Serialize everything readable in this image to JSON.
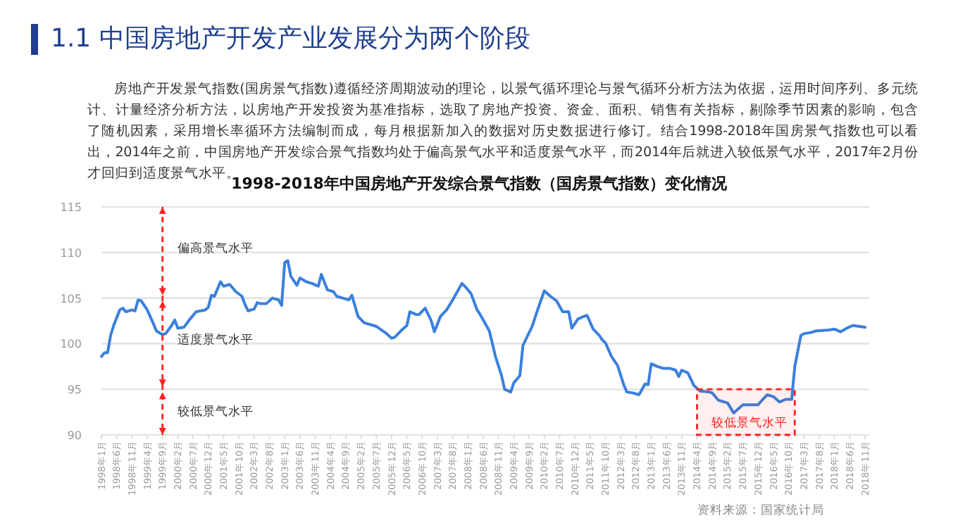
{
  "chart_data": {
    "type": "line",
    "title": "1998-2018年中国房地产开发综合景气指数（国房景气指数）变化情况",
    "annotations": [
      "1.1  中国房地产开发产业发展分为两个阶段",
      "房地产开发景气指数(国房景气指数)遵循经济周期波动的理论，以景气循环理论与景气循环分析方法为依据，运用时间序列、多元统计、计量经济分析方法，以房地产开发投资为基准指标，选取了房地产投资、资金、面积、销售有关指标，剔除季节因素的影响，包含了随机因素，采用增长率循环方法编制而成，每月根据新加入的数据对历史数据进行修订。结合1998-2018年国房景气指数也可以看出，2014年之前，中国房地产开发综合景气指数均处于偏高景气水平和适度景气水平，而2014年后就进入较低景气水平，2017年2月份才回归到适度景气水平。",
      "资料来源：国家统计局",
      "偏高景气水平",
      "适度景气水平",
      "较低景气水平",
      "较低景气水平"
    ],
    "x": [
      "1998-01",
      "1998-02",
      "1998-03",
      "1998-04",
      "1998-05",
      "1998-07",
      "1998-08",
      "1998-09",
      "1998-11",
      "1998-12",
      "1999-01",
      "1999-02",
      "1999-04",
      "1999-06",
      "1999-07",
      "1999-09",
      "1999-10",
      "1999-12",
      "2000-01",
      "2000-02",
      "2000-04",
      "2000-06",
      "2000-08",
      "2000-11",
      "2000-12",
      "2001-01",
      "2001-02",
      "2001-04",
      "2001-05",
      "2001-07",
      "2001-09",
      "2001-11",
      "2001-12",
      "2002-01",
      "2002-03",
      "2002-04",
      "2002-05",
      "2002-07",
      "2002-09",
      "2002-11",
      "2002-12",
      "2003-01",
      "2003-02",
      "2003-03",
      "2003-05",
      "2003-06",
      "2003-08",
      "2003-10",
      "2003-12",
      "2004-01",
      "2004-03",
      "2004-05",
      "2004-06",
      "2004-08",
      "2004-10",
      "2004-11",
      "2005-01",
      "2005-03",
      "2005-07",
      "2005-10",
      "2005-12",
      "2006-01",
      "2006-03",
      "2006-05",
      "2006-06",
      "2006-08",
      "2006-09",
      "2006-11",
      "2007-01",
      "2007-02",
      "2007-04",
      "2007-06",
      "2007-08",
      "2007-11",
      "2007-12",
      "2008-02",
      "2008-04",
      "2008-05",
      "2008-08",
      "2008-10",
      "2008-12",
      "2009-01",
      "2009-03",
      "2009-04",
      "2009-06",
      "2009-07",
      "2009-10",
      "2009-12",
      "2010-02",
      "2010-04",
      "2010-06",
      "2010-08",
      "2010-10",
      "2010-11",
      "2011-01",
      "2011-03",
      "2011-04",
      "2011-06",
      "2011-08",
      "2011-09",
      "2011-10",
      "2011-12",
      "2012-02",
      "2012-04",
      "2012-05",
      "2012-07",
      "2012-09",
      "2012-11",
      "2012-12",
      "2013-01",
      "2013-03",
      "2013-05",
      "2013-07",
      "2013-09",
      "2013-10",
      "2013-11",
      "2014-01",
      "2014-03",
      "2014-05",
      "2014-08",
      "2014-09",
      "2014-11",
      "2015-02",
      "2015-04",
      "2015-05",
      "2015-07",
      "2015-09",
      "2015-12",
      "2016-01",
      "2016-03",
      "2016-05",
      "2016-07",
      "2016-09",
      "2016-11",
      "2016-12",
      "2017-02",
      "2017-03",
      "2017-05",
      "2017-07",
      "2017-11",
      "2018-01",
      "2018-03",
      "2018-05",
      "2018-07",
      "2018-09",
      "2018-11"
    ],
    "values": [
      98.6,
      99.0,
      99.0,
      100.9,
      102.0,
      103.7,
      103.9,
      103.5,
      103.7,
      103.6,
      104.8,
      104.7,
      103.7,
      102.2,
      101.4,
      101.0,
      101.1,
      102.0,
      102.6,
      101.7,
      101.8,
      102.7,
      103.5,
      103.7,
      104.0,
      105.3,
      105.2,
      106.8,
      106.3,
      106.5,
      105.7,
      105.2,
      104.3,
      103.6,
      103.8,
      104.5,
      104.4,
      104.4,
      105.0,
      104.8,
      104.2,
      108.9,
      109.1,
      107.4,
      106.4,
      107.2,
      106.8,
      106.6,
      106.3,
      107.6,
      105.9,
      105.7,
      105.2,
      105.0,
      104.8,
      105.3,
      103.0,
      102.3,
      101.9,
      101.2,
      100.6,
      100.7,
      101.4,
      102.0,
      103.5,
      103.2,
      103.2,
      103.9,
      102.5,
      101.3,
      103.0,
      103.7,
      104.8,
      106.6,
      106.3,
      105.5,
      103.7,
      103.2,
      101.4,
      98.6,
      96.5,
      95.0,
      94.7,
      95.7,
      96.5,
      99.8,
      101.9,
      103.9,
      105.8,
      105.2,
      104.7,
      103.5,
      103.5,
      101.7,
      102.7,
      103.0,
      103.1,
      101.6,
      100.9,
      100.4,
      100.1,
      98.6,
      97.6,
      95.5,
      94.7,
      94.6,
      94.4,
      95.6,
      95.5,
      97.8,
      97.5,
      97.3,
      97.3,
      97.1,
      96.4,
      97.1,
      96.8,
      95.4,
      94.8,
      94.7,
      94.6,
      93.8,
      93.5,
      92.4,
      92.7,
      93.3,
      93.3,
      93.3,
      93.7,
      94.4,
      94.2,
      93.6,
      93.9,
      93.9,
      97.5,
      100.9,
      101.1,
      101.2,
      101.4,
      101.5,
      101.6,
      101.3,
      101.7,
      102.0,
      101.9,
      101.8
    ],
    "color": "#3a80dd",
    "marker": "none",
    "line_style": "solid",
    "grid": "y",
    "xlim": [
      "1998-01",
      "2018-11"
    ],
    "xticks": [
      {
        "value": "1998-01",
        "label": "1998年1月"
      },
      {
        "value": "1998-06",
        "label": "1998年6月"
      },
      {
        "value": "1998-11",
        "label": "1998年11月"
      },
      {
        "value": "1999-04",
        "label": "1999年4月"
      },
      {
        "value": "1999-09",
        "label": "1999年9月"
      },
      {
        "value": "2000-02",
        "label": "2000年2月"
      },
      {
        "value": "2000-07",
        "label": "2000年7月"
      },
      {
        "value": "2000-12",
        "label": "2000年12月"
      },
      {
        "value": "2001-05",
        "label": "2001年5月"
      },
      {
        "value": "2001-10",
        "label": "2001年10月"
      },
      {
        "value": "2002-03",
        "label": "2002年3月"
      },
      {
        "value": "2002-08",
        "label": "2002年8月"
      },
      {
        "value": "2003-01",
        "label": "2003年1月"
      },
      {
        "value": "2003-06",
        "label": "2003年6月"
      },
      {
        "value": "2003-11",
        "label": "2003年11月"
      },
      {
        "value": "2004-04",
        "label": "2004年4月"
      },
      {
        "value": "2004-09",
        "label": "2004年9月"
      },
      {
        "value": "2005-02",
        "label": "2005年2月"
      },
      {
        "value": "2005-07",
        "label": "2005年7月"
      },
      {
        "value": "2005-12",
        "label": "2005年12月"
      },
      {
        "value": "2006-05",
        "label": "2006年5月"
      },
      {
        "value": "2006-10",
        "label": "2006年10月"
      },
      {
        "value": "2007-03",
        "label": "2007年3月"
      },
      {
        "value": "2007-08",
        "label": "2007年8月"
      },
      {
        "value": "2008-01",
        "label": "2008年1月"
      },
      {
        "value": "2008-06",
        "label": "2008年6月"
      },
      {
        "value": "2008-11",
        "label": "2008年11月"
      },
      {
        "value": "2009-04",
        "label": "2009年4月"
      },
      {
        "value": "2009-09",
        "label": "2009年9月"
      },
      {
        "value": "2010-02",
        "label": "2010年2月"
      },
      {
        "value": "2010-07",
        "label": "2010年7月"
      },
      {
        "value": "2010-12",
        "label": "2010年12月"
      },
      {
        "value": "2011-05",
        "label": "2011年5月"
      },
      {
        "value": "2011-10",
        "label": "2011年10月"
      },
      {
        "value": "2012-03",
        "label": "2012年3月"
      },
      {
        "value": "2012-08",
        "label": "2012年8月"
      },
      {
        "value": "2013-01",
        "label": "2013年1月"
      },
      {
        "value": "2013-06",
        "label": "2013年6月"
      },
      {
        "value": "2013-11",
        "label": "2013年11月"
      },
      {
        "value": "2014-04",
        "label": "2014年4月"
      },
      {
        "value": "2014-09",
        "label": "2014年9月"
      },
      {
        "value": "2015-02",
        "label": "2015年2月"
      },
      {
        "value": "2015-07",
        "label": "2015年7月"
      },
      {
        "value": "2015-12",
        "label": "2015年12月"
      },
      {
        "value": "2016-05",
        "label": "2016年5月"
      },
      {
        "value": "2016-10",
        "label": "2016年10月"
      },
      {
        "value": "2017-03",
        "label": "2017年3月"
      },
      {
        "value": "2017-08",
        "label": "2017年8月"
      },
      {
        "value": "2018-01",
        "label": "2018年1月"
      },
      {
        "value": "2018-06",
        "label": "2018年6月"
      },
      {
        "value": "2018-11",
        "label": "2018年11月"
      }
    ],
    "ylim": [
      90,
      115
    ],
    "yticks": [
      90,
      95,
      100,
      105,
      110,
      115
    ],
    "ref_lines": [
      {
        "axis": "x",
        "value": "1999-09",
        "color": "#ff2020",
        "line_style": "dashed"
      }
    ],
    "bands": [
      {
        "axis": "x",
        "from": "2014-04",
        "to": "2016-12",
        "color": "#ff2020"
      }
    ]
  }
}
